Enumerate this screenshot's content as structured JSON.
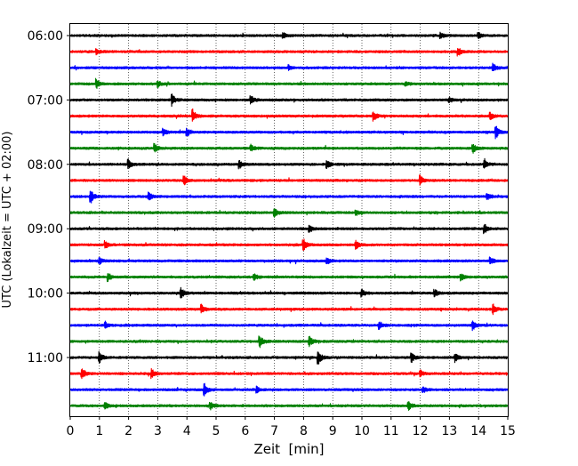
{
  "chart_data": {
    "type": "line",
    "title": "",
    "xlabel": "Zeit  [min]",
    "ylabel": "UTC (Lokalzeit = UTC + 02:00)",
    "xlim": [
      0,
      15
    ],
    "x_ticks": [
      "0",
      "1",
      "2",
      "3",
      "4",
      "5",
      "6",
      "7",
      "8",
      "9",
      "10",
      "11",
      "12",
      "13",
      "14",
      "15"
    ],
    "y_tick_labels": [
      "06:00",
      "07:00",
      "08:00",
      "09:00",
      "10:00",
      "11:00"
    ],
    "grid": "vertical-dotted",
    "row_color_cycle": [
      "#000000",
      "#ff0000",
      "#0000ff",
      "#008000"
    ],
    "traces": [
      {
        "start": "06:00",
        "events": [
          {
            "t": 7.3,
            "amp": 0.35
          },
          {
            "t": 12.7,
            "amp": 0.35
          },
          {
            "t": 14.0,
            "amp": 0.35
          }
        ]
      },
      {
        "start": "06:15",
        "events": [
          {
            "t": 0.9,
            "amp": 0.3
          },
          {
            "t": 13.3,
            "amp": 0.55
          }
        ]
      },
      {
        "start": "06:30",
        "events": [
          {
            "t": 7.5,
            "amp": 0.3
          },
          {
            "t": 14.5,
            "amp": 0.5
          }
        ]
      },
      {
        "start": "06:45",
        "events": [
          {
            "t": 0.9,
            "amp": 0.55
          },
          {
            "t": 3.0,
            "amp": 0.4
          },
          {
            "t": 11.5,
            "amp": 0.3
          }
        ]
      },
      {
        "start": "07:00",
        "events": [
          {
            "t": 3.5,
            "amp": 0.6
          },
          {
            "t": 6.2,
            "amp": 0.5
          },
          {
            "t": 13.0,
            "amp": 0.3
          }
        ]
      },
      {
        "start": "07:15",
        "events": [
          {
            "t": 4.2,
            "amp": 0.8
          },
          {
            "t": 10.4,
            "amp": 0.6
          },
          {
            "t": 14.4,
            "amp": 0.4
          }
        ]
      },
      {
        "start": "07:30",
        "events": [
          {
            "t": 3.2,
            "amp": 0.4
          },
          {
            "t": 4.0,
            "amp": 0.5
          },
          {
            "t": 14.6,
            "amp": 0.7
          }
        ]
      },
      {
        "start": "07:45",
        "events": [
          {
            "t": 2.9,
            "amp": 0.5
          },
          {
            "t": 6.2,
            "amp": 0.4
          },
          {
            "t": 13.8,
            "amp": 0.6
          }
        ]
      },
      {
        "start": "08:00",
        "events": [
          {
            "t": 2.0,
            "amp": 0.55
          },
          {
            "t": 5.8,
            "amp": 0.45
          },
          {
            "t": 8.8,
            "amp": 0.5
          },
          {
            "t": 14.2,
            "amp": 0.45
          }
        ]
      },
      {
        "start": "08:15",
        "events": [
          {
            "t": 3.9,
            "amp": 0.6
          },
          {
            "t": 12.0,
            "amp": 0.6
          }
        ]
      },
      {
        "start": "08:30",
        "events": [
          {
            "t": 0.7,
            "amp": 0.9
          },
          {
            "t": 2.7,
            "amp": 0.5
          },
          {
            "t": 14.3,
            "amp": 0.4
          }
        ]
      },
      {
        "start": "08:45",
        "events": [
          {
            "t": 7.0,
            "amp": 0.6
          },
          {
            "t": 9.8,
            "amp": 0.3
          }
        ]
      },
      {
        "start": "09:00",
        "events": [
          {
            "t": 8.2,
            "amp": 0.5
          },
          {
            "t": 14.2,
            "amp": 0.6
          }
        ]
      },
      {
        "start": "09:15",
        "events": [
          {
            "t": 1.2,
            "amp": 0.5
          },
          {
            "t": 8.0,
            "amp": 0.7
          },
          {
            "t": 9.8,
            "amp": 0.5
          }
        ]
      },
      {
        "start": "09:30",
        "events": [
          {
            "t": 1.0,
            "amp": 0.4
          },
          {
            "t": 8.8,
            "amp": 0.4
          },
          {
            "t": 14.4,
            "amp": 0.4
          }
        ]
      },
      {
        "start": "09:45",
        "events": [
          {
            "t": 1.3,
            "amp": 0.5
          },
          {
            "t": 6.3,
            "amp": 0.4
          },
          {
            "t": 13.4,
            "amp": 0.4
          }
        ]
      },
      {
        "start": "10:00",
        "events": [
          {
            "t": 3.8,
            "amp": 0.6
          },
          {
            "t": 10.0,
            "amp": 0.4
          },
          {
            "t": 12.5,
            "amp": 0.4
          }
        ]
      },
      {
        "start": "10:15",
        "events": [
          {
            "t": 4.5,
            "amp": 0.5
          },
          {
            "t": 14.5,
            "amp": 0.6
          }
        ]
      },
      {
        "start": "10:30",
        "events": [
          {
            "t": 1.2,
            "amp": 0.4
          },
          {
            "t": 10.6,
            "amp": 0.5
          },
          {
            "t": 13.8,
            "amp": 0.6
          }
        ]
      },
      {
        "start": "10:45",
        "events": [
          {
            "t": 6.5,
            "amp": 0.7
          },
          {
            "t": 8.2,
            "amp": 0.6
          }
        ]
      },
      {
        "start": "11:00",
        "events": [
          {
            "t": 1.0,
            "amp": 0.7
          },
          {
            "t": 8.5,
            "amp": 0.9
          },
          {
            "t": 11.7,
            "amp": 0.6
          },
          {
            "t": 13.2,
            "amp": 0.5
          }
        ]
      },
      {
        "start": "11:15",
        "events": [
          {
            "t": 0.4,
            "amp": 0.7
          },
          {
            "t": 2.8,
            "amp": 0.5
          },
          {
            "t": 12.0,
            "amp": 0.4
          }
        ]
      },
      {
        "start": "11:30",
        "events": [
          {
            "t": 4.6,
            "amp": 0.75
          },
          {
            "t": 6.4,
            "amp": 0.4
          },
          {
            "t": 12.1,
            "amp": 0.4
          }
        ]
      },
      {
        "start": "11:45",
        "events": [
          {
            "t": 1.2,
            "amp": 0.4
          },
          {
            "t": 4.8,
            "amp": 0.45
          },
          {
            "t": 11.6,
            "amp": 0.5
          }
        ]
      }
    ]
  }
}
